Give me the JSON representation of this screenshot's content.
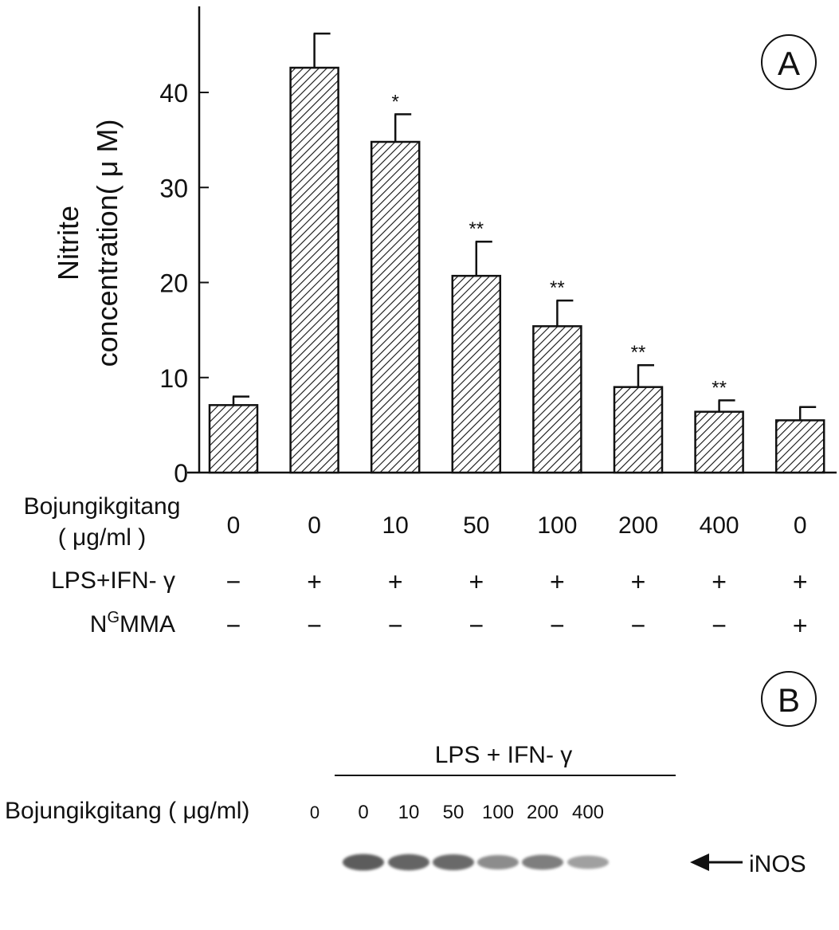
{
  "panel_a": {
    "label": "A",
    "ylabel_line1": "Nitrite",
    "ylabel_line2": "concentration( μ M)",
    "row_labels": {
      "dose_line1": "Bojungikgitang",
      "dose_line2": "( μg/ml )",
      "lps": "LPS+IFN- γ",
      "ngmma_base": "N",
      "ngmma_sup": "G",
      "ngmma_rest": "MMA"
    },
    "doses": [
      "0",
      "0",
      "10",
      "50",
      "100",
      "200",
      "400",
      "0"
    ],
    "lps_ifn": [
      "−",
      "+",
      "+",
      "+",
      "+",
      "+",
      "+",
      "+"
    ],
    "ngmma": [
      "−",
      "−",
      "−",
      "−",
      "−",
      "−",
      "−",
      "+"
    ]
  },
  "chart_data": {
    "type": "bar",
    "title": "",
    "xlabel": "",
    "ylabel": "Nitrite concentration( μ M)",
    "ylim": [
      0,
      50
    ],
    "yticks": [
      0,
      10,
      20,
      30,
      40
    ],
    "grid": false,
    "categories": [
      "0",
      "0",
      "10",
      "50",
      "100",
      "200",
      "400",
      "0"
    ],
    "values": [
      7.1,
      42.6,
      34.8,
      20.7,
      15.4,
      9.0,
      6.4,
      5.5
    ],
    "errors": [
      0.9,
      3.6,
      2.9,
      3.6,
      2.7,
      2.3,
      1.2,
      1.4
    ],
    "significance": [
      "",
      "",
      "*",
      "**",
      "**",
      "**",
      "**",
      ""
    ],
    "pattern": "diagonal-hatch"
  },
  "panel_b": {
    "label": "B",
    "group_label": "LPS + IFN- γ",
    "row_label": "Bojungikgitang ( μg/ml) ",
    "lane_doses": [
      "0",
      "0",
      "10",
      "50",
      "100",
      "200",
      "400"
    ],
    "band_label": "iNOS",
    "band_intensity": [
      0,
      0.85,
      0.8,
      0.75,
      0.5,
      0.6,
      0.35
    ]
  }
}
